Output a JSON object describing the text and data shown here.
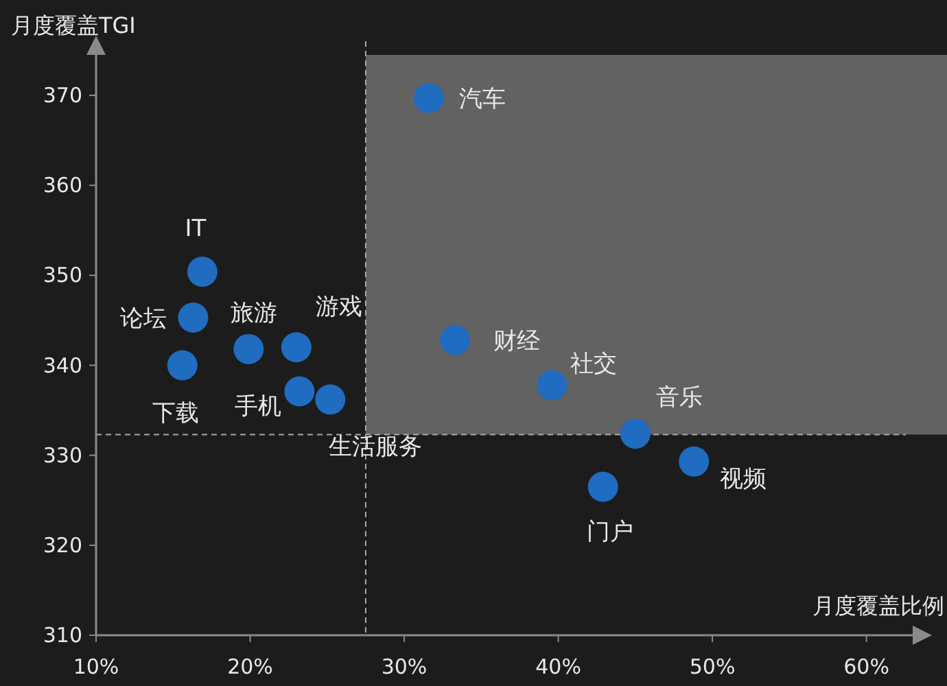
{
  "chart_data": {
    "type": "scatter",
    "xlabel": "月度覆盖比例",
    "ylabel": "月度覆盖TGI",
    "series": [
      {
        "color": "#1f6cc0",
        "x": [
          31.6,
          16.9,
          16.3,
          15.6,
          19.9,
          23.0,
          23.2,
          25.2,
          33.3,
          39.6,
          45.0,
          48.8,
          42.9
        ],
        "values": [
          369.7,
          350.4,
          345.3,
          340.0,
          341.8,
          342.0,
          337.1,
          336.2,
          342.8,
          337.8,
          332.4,
          329.3,
          326.5
        ]
      }
    ],
    "annotations": [
      {
        "text": "汽车",
        "x": 31.6,
        "y": 369.7
      },
      {
        "text": "IT",
        "x": 16.9,
        "y": 350.4
      },
      {
        "text": "论坛",
        "x": 16.3,
        "y": 345.3
      },
      {
        "text": "下载",
        "x": 15.6,
        "y": 340.0
      },
      {
        "text": "旅游",
        "x": 19.9,
        "y": 341.8
      },
      {
        "text": "游戏",
        "x": 23.0,
        "y": 342.0
      },
      {
        "text": "手机",
        "x": 23.2,
        "y": 337.1
      },
      {
        "text": "生活服务",
        "x": 25.2,
        "y": 336.2
      },
      {
        "text": "财经",
        "x": 33.3,
        "y": 342.8
      },
      {
        "text": "社交",
        "x": 39.6,
        "y": 337.8
      },
      {
        "text": "音乐",
        "x": 45.0,
        "y": 332.4
      },
      {
        "text": "视频",
        "x": 48.8,
        "y": 329.3
      },
      {
        "text": "门户",
        "x": 42.9,
        "y": 326.5
      }
    ],
    "xlim": [
      10,
      63
    ],
    "ylim": [
      310,
      374.5
    ],
    "xticks": [
      {
        "value": 10,
        "label": "10%"
      },
      {
        "value": 20,
        "label": "20%"
      },
      {
        "value": 30,
        "label": "30%"
      },
      {
        "value": 40,
        "label": "40%"
      },
      {
        "value": 50,
        "label": "50%"
      },
      {
        "value": 60,
        "label": "60%"
      }
    ],
    "yticks": [
      310,
      320,
      330,
      340,
      350,
      360,
      370
    ],
    "ref_lines": [
      {
        "axis": "x",
        "value": 27.5,
        "line_style": "dashed"
      },
      {
        "axis": "y",
        "value": 332.3,
        "line_style": "dashed"
      }
    ],
    "bands": [
      {
        "axis": "x",
        "from": 27.5,
        "to": 63,
        "color": "#6e6e6e"
      }
    ],
    "marker": "circle",
    "grid": false
  }
}
